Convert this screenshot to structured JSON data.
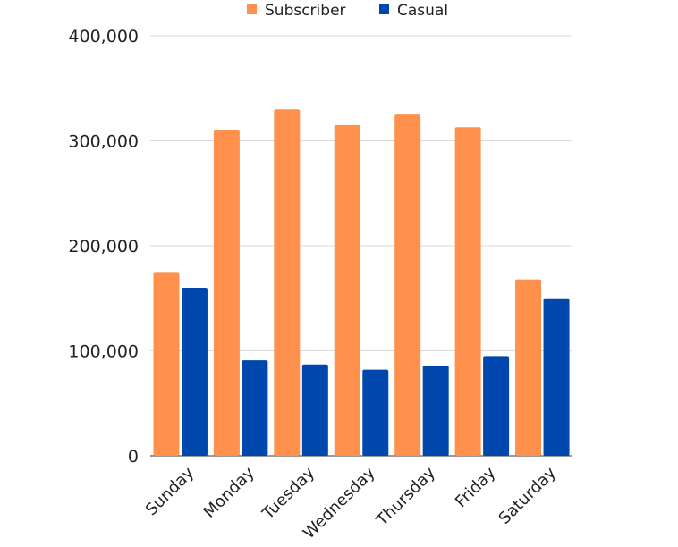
{
  "chart_data": {
    "type": "bar",
    "categories": [
      "Sunday",
      "Monday",
      "Tuesday",
      "Wednesday",
      "Thursday",
      "Friday",
      "Saturday"
    ],
    "series": [
      {
        "name": "Subscriber",
        "color": "#FF914D",
        "values": [
          175000,
          310000,
          330000,
          315000,
          325000,
          313000,
          168000
        ]
      },
      {
        "name": "Casual",
        "color": "#0048AD",
        "values": [
          160000,
          91000,
          87000,
          82000,
          86000,
          95000,
          150000
        ]
      }
    ],
    "title": "",
    "xlabel": "",
    "ylabel": "",
    "ylim": [
      0,
      400000
    ],
    "yticks": [
      0,
      100000,
      200000,
      300000,
      400000
    ],
    "ytick_labels": [
      "0",
      "100,000",
      "200,000",
      "300,000",
      "400,000"
    ],
    "grid": true,
    "legend": "top-center"
  }
}
